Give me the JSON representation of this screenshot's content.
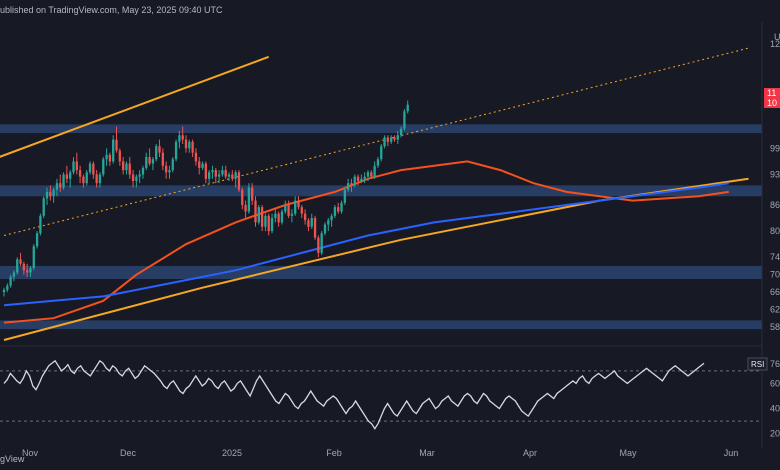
{
  "header": {
    "text": "ublished on TradingView.com, May 23, 2025 09:40 UTC"
  },
  "footer": {
    "brand": "gView"
  },
  "price_axis": {
    "currency_partial": "U",
    "price_labels": [
      {
        "text": "11",
        "bg": "#f23645"
      },
      {
        "text": "10",
        "bg": "#f23645"
      }
    ]
  },
  "chart_data": [
    {
      "type": "candlestick",
      "title": "",
      "x_ticks": [
        "Nov",
        "Dec",
        "2025",
        "Feb",
        "Mar",
        "Apr",
        "May",
        "Jun"
      ],
      "y_ticks": [
        "12",
        "11",
        "99",
        "93",
        "86",
        "80",
        "74",
        "70",
        "66",
        "62",
        "58"
      ],
      "ylim": [
        55,
        128
      ],
      "colors": {
        "up": "#26a69a",
        "down": "#ef5350",
        "ma_short": "#f4511e",
        "ma_long": "#2962ff",
        "trendline": "#f5a623",
        "zone": "#2b4470"
      },
      "candles_ohlc": [
        [
          66,
          67,
          65,
          66.5
        ],
        [
          66.5,
          68,
          66,
          67.5
        ],
        [
          67.5,
          70,
          67,
          69.5
        ],
        [
          69.5,
          71,
          68.5,
          70.5
        ],
        [
          70.5,
          74,
          70,
          73.5
        ],
        [
          73.5,
          75,
          72,
          72.5
        ],
        [
          72.5,
          73,
          70,
          71
        ],
        [
          71,
          72.5,
          69.5,
          70.5
        ],
        [
          70.5,
          72,
          69.5,
          71.5
        ],
        [
          71.5,
          77,
          71,
          76.5
        ],
        [
          76.5,
          80,
          76,
          79.5
        ],
        [
          79.5,
          84,
          79,
          83.5
        ],
        [
          83.5,
          88,
          83,
          87.5
        ],
        [
          87.5,
          90,
          86,
          89
        ],
        [
          89,
          90.5,
          87,
          88
        ],
        [
          88,
          90,
          86.5,
          89.5
        ],
        [
          89.5,
          92,
          88,
          91
        ],
        [
          91,
          93,
          89,
          90
        ],
        [
          90,
          93.5,
          89.5,
          93
        ],
        [
          93,
          95,
          91,
          92
        ],
        [
          92,
          94,
          90,
          93.5
        ],
        [
          93.5,
          97,
          93,
          96
        ],
        [
          96,
          98,
          93,
          94
        ],
        [
          94,
          95,
          91,
          92.5
        ],
        [
          92.5,
          93,
          90,
          91
        ],
        [
          91,
          94,
          90.5,
          93.5
        ],
        [
          93.5,
          96,
          93,
          95.5
        ],
        [
          95.5,
          96,
          92,
          93
        ],
        [
          93,
          94,
          90,
          91
        ],
        [
          91,
          93.5,
          90,
          93
        ],
        [
          93,
          97,
          92.5,
          96.5
        ],
        [
          96.5,
          99,
          95,
          97.5
        ],
        [
          97.5,
          98,
          95,
          96
        ],
        [
          96,
          102,
          95.5,
          101
        ],
        [
          101,
          104,
          98,
          98.5
        ],
        [
          98.5,
          99,
          95,
          96
        ],
        [
          96,
          97,
          93,
          94
        ],
        [
          94,
          96,
          93,
          95.5
        ],
        [
          95.5,
          97,
          92,
          93
        ],
        [
          93,
          94,
          90,
          91.5
        ],
        [
          91.5,
          93,
          90,
          92.5
        ],
        [
          92.5,
          94,
          91,
          93
        ],
        [
          93,
          95,
          92,
          94.5
        ],
        [
          94.5,
          98,
          94,
          97
        ],
        [
          97,
          99,
          95,
          95.5
        ],
        [
          95.5,
          97,
          94,
          96.5
        ],
        [
          96.5,
          100,
          96,
          99.5
        ],
        [
          99.5,
          101,
          97,
          98
        ],
        [
          98,
          99,
          94,
          95
        ],
        [
          95,
          96,
          92,
          93.5
        ],
        [
          93.5,
          95,
          92,
          94
        ],
        [
          94,
          97,
          93.5,
          96.5
        ],
        [
          96.5,
          101,
          96,
          100.5
        ],
        [
          100.5,
          103,
          99,
          102
        ],
        [
          102,
          104,
          100,
          101
        ],
        [
          101,
          102,
          98,
          99
        ],
        [
          99,
          101,
          98,
          100.5
        ],
        [
          100.5,
          101,
          97,
          98
        ],
        [
          98,
          99,
          95,
          96
        ],
        [
          96,
          97,
          93,
          94.5
        ],
        [
          94.5,
          96,
          94,
          95.5
        ],
        [
          95.5,
          96,
          91,
          92
        ],
        [
          92,
          94,
          91,
          93.5
        ],
        [
          93.5,
          95,
          92,
          94
        ],
        [
          94,
          94.5,
          91,
          92.5
        ],
        [
          92.5,
          94,
          91,
          93
        ],
        [
          93,
          95,
          92.5,
          94
        ],
        [
          94,
          95,
          92,
          92.5
        ],
        [
          92.5,
          93.5,
          91.5,
          93
        ],
        [
          93,
          94,
          91.5,
          92
        ],
        [
          92,
          94,
          90,
          93.5
        ],
        [
          93.5,
          94,
          89,
          89.5
        ],
        [
          89.5,
          90,
          85,
          86
        ],
        [
          86,
          87,
          83,
          84.5
        ],
        [
          84.5,
          91,
          84,
          90
        ],
        [
          90,
          91,
          86,
          87
        ],
        [
          87,
          88,
          81,
          82
        ],
        [
          82,
          86,
          81.5,
          85.5
        ],
        [
          85.5,
          86,
          80,
          81
        ],
        [
          81,
          84,
          80,
          83.5
        ],
        [
          83.5,
          84,
          79,
          80
        ],
        [
          80,
          84,
          79.5,
          83
        ],
        [
          83,
          85,
          82,
          84
        ],
        [
          84,
          84.5,
          81,
          82
        ],
        [
          82,
          85,
          81.5,
          84.5
        ],
        [
          84.5,
          87,
          84,
          86
        ],
        [
          86,
          87,
          83,
          83.5
        ],
        [
          83.5,
          85,
          82,
          84
        ],
        [
          84,
          88,
          83.5,
          87
        ],
        [
          87,
          88,
          85,
          85.5
        ],
        [
          85.5,
          86,
          83,
          84
        ],
        [
          84,
          85,
          81.5,
          82.5
        ],
        [
          82.5,
          83,
          80,
          81
        ],
        [
          81,
          84,
          80.5,
          83
        ],
        [
          83,
          83.5,
          78,
          78.5
        ],
        [
          78.5,
          79,
          74,
          75
        ],
        [
          75,
          80,
          74.5,
          79.5
        ],
        [
          79.5,
          82,
          79,
          81.5
        ],
        [
          81.5,
          83,
          80,
          82.5
        ],
        [
          82.5,
          84,
          81,
          83.5
        ],
        [
          83.5,
          86,
          83,
          85.5
        ],
        [
          85.5,
          86.5,
          84,
          84.5
        ],
        [
          84.5,
          87,
          84,
          86.5
        ],
        [
          86.5,
          90,
          86,
          89.5
        ],
        [
          89.5,
          92,
          89,
          91
        ],
        [
          91,
          92,
          89,
          90.5
        ],
        [
          90.5,
          93,
          90,
          92.5
        ],
        [
          92.5,
          93,
          90.5,
          91.5
        ],
        [
          91.5,
          93,
          91,
          92
        ],
        [
          92,
          93.5,
          91,
          92.5
        ],
        [
          92.5,
          94,
          91.5,
          93.5
        ],
        [
          93.5,
          94,
          92,
          92.5
        ],
        [
          92.5,
          96,
          92,
          95
        ],
        [
          95,
          97,
          94.5,
          96.5
        ],
        [
          96.5,
          100,
          96,
          99.5
        ],
        [
          99.5,
          102,
          99,
          101.5
        ],
        [
          101.5,
          102,
          99.5,
          100.5
        ],
        [
          100.5,
          102,
          100,
          101.5
        ],
        [
          101.5,
          102,
          100.5,
          101
        ],
        [
          101,
          103,
          100,
          102
        ],
        [
          102,
          104,
          101.5,
          103.5
        ],
        [
          103.5,
          108,
          103,
          107.5
        ],
        [
          107.5,
          110,
          107,
          109
        ]
      ],
      "series": [
        {
          "name": "",
          "values": [
            [
              0,
              59
            ],
            [
              15,
              60
            ],
            [
              30,
              64
            ],
            [
              40,
              70
            ],
            [
              55,
              77
            ],
            [
              70,
              82
            ],
            [
              85,
              86
            ],
            [
              100,
              89
            ],
            [
              110,
              92
            ],
            [
              120,
              94
            ],
            [
              130,
              95
            ],
            [
              140,
              96
            ],
            [
              150,
              94
            ],
            [
              160,
              91
            ],
            [
              170,
              89
            ],
            [
              180,
              88
            ],
            [
              190,
              87
            ],
            [
              200,
              87.5
            ],
            [
              210,
              88
            ],
            [
              219,
              89
            ]
          ]
        },
        {
          "name": "",
          "values": [
            [
              0,
              63
            ],
            [
              15,
              64
            ],
            [
              30,
              65
            ],
            [
              50,
              68
            ],
            [
              70,
              71
            ],
            [
              90,
              75
            ],
            [
              110,
              79
            ],
            [
              130,
              82
            ],
            [
              150,
              84
            ],
            [
              170,
              86
            ],
            [
              190,
              88
            ],
            [
              210,
              90
            ],
            [
              219,
              91
            ]
          ]
        }
      ],
      "trendlines": [
        {
          "values": [
            [
              -5,
              96
            ],
            [
              80,
              120
            ]
          ]
        },
        {
          "values": [
            [
              0,
              55
            ],
            [
              60,
              67
            ],
            [
              120,
              78
            ],
            [
              180,
              87
            ],
            [
              225,
              92
            ]
          ]
        },
        {
          "values": [
            [
              0,
              79
            ],
            [
              225,
              122
            ]
          ],
          "style": "dotted"
        }
      ],
      "zones": [
        {
          "range": [
            102.5,
            104.5
          ]
        },
        {
          "range": [
            88,
            90.5
          ]
        },
        {
          "range": [
            69,
            72
          ]
        },
        {
          "range": [
            57.5,
            59.5
          ]
        }
      ],
      "x_count": 220
    },
    {
      "type": "line",
      "title": "",
      "series_label": "RSI",
      "value_label": "76",
      "y_ticks": [
        "60",
        "40",
        "20"
      ],
      "ylim": [
        15,
        85
      ],
      "levels": [
        70,
        30
      ],
      "series": [
        {
          "name": "",
          "values": [
            60,
            63,
            68,
            65,
            62,
            60,
            64,
            70,
            66,
            58,
            55,
            60,
            66,
            70,
            74,
            76,
            78,
            74,
            70,
            72,
            75,
            70,
            68,
            72,
            74,
            70,
            68,
            66,
            70,
            74,
            78,
            76,
            72,
            70,
            74,
            72,
            68,
            66,
            70,
            72,
            68,
            64,
            66,
            70,
            74,
            72,
            70,
            68,
            65,
            62,
            58,
            56,
            60,
            62,
            58,
            54,
            52,
            56,
            58,
            62,
            66,
            62,
            58,
            60,
            64,
            62,
            58,
            56,
            60,
            62,
            58,
            54,
            56,
            60,
            62,
            58,
            54,
            50,
            56,
            62,
            66,
            62,
            58,
            54,
            50,
            46,
            44,
            48,
            52,
            50,
            46,
            42,
            40,
            44,
            46,
            50,
            54,
            50,
            46,
            44,
            42,
            46,
            48,
            50,
            48,
            44,
            40,
            36,
            40,
            42,
            46,
            42,
            38,
            34,
            30,
            28,
            24,
            28,
            34,
            40,
            44,
            40,
            36,
            34,
            38,
            42,
            46,
            42,
            38,
            36,
            40,
            44,
            46,
            48,
            44,
            40,
            42,
            46,
            48,
            50,
            46,
            44,
            42,
            46,
            50,
            52,
            50,
            46,
            44,
            48,
            52,
            50,
            46,
            44,
            42,
            40,
            44,
            48,
            50,
            48,
            46,
            42,
            38,
            36,
            34,
            38,
            42,
            46,
            48,
            50,
            52,
            50,
            48,
            52,
            54,
            56,
            58,
            60,
            62,
            60,
            64,
            66,
            62,
            60,
            64,
            66,
            68,
            66,
            64,
            66,
            68,
            70,
            66,
            64,
            62,
            60,
            62,
            64,
            66,
            68,
            70,
            72,
            70,
            68,
            66,
            64,
            62,
            66,
            70,
            72,
            74,
            72,
            70,
            68,
            66,
            68,
            70,
            72,
            74,
            76
          ]
        }
      ]
    }
  ]
}
